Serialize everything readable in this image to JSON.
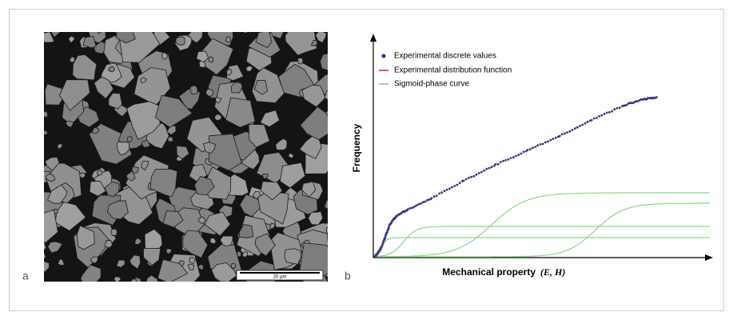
{
  "panel_a": {
    "label": "a",
    "scale_bar": "20 µm"
  },
  "panel_b": {
    "label": "b",
    "y_axis_label": "Frequency",
    "x_axis_label": "Mechanical property",
    "x_axis_symbols": "(E, H)",
    "legend": [
      "Experimental discrete values",
      "Experimental distribution function",
      "Sigmoid-phase curve"
    ]
  }
}
